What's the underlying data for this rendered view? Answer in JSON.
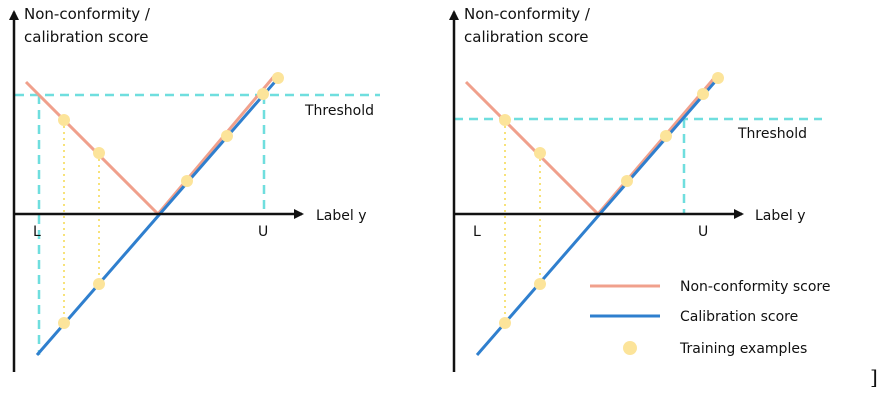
{
  "left_panel": {
    "y_axis_label_line1": "Non-conformity /",
    "y_axis_label_line2": "calibration score",
    "x_axis_label": "Label y",
    "threshold_label": "Threshold",
    "lower_label": "L",
    "upper_label": "U"
  },
  "right_panel": {
    "y_axis_label_line1": "Non-conformity /",
    "y_axis_label_line2": "calibration score",
    "x_axis_label": "Label y",
    "threshold_label": "Threshold",
    "lower_label": "L",
    "upper_label": "U"
  },
  "legend": {
    "items": [
      {
        "label": "Non-conformity score",
        "color": "#f0a08c",
        "kind": "line"
      },
      {
        "label": "Calibration score",
        "color": "#2f7fce",
        "kind": "line"
      },
      {
        "label": "Training examples",
        "color": "#fce49a",
        "kind": "dot"
      }
    ]
  },
  "trailing_glyph": "]",
  "colors": {
    "axis": "#111111",
    "nonconformity": "#f0a08c",
    "calibration": "#2f7fce",
    "threshold": "#6fdede",
    "dots": "#fce49a",
    "dotted_connector": "#f7e27a"
  }
}
